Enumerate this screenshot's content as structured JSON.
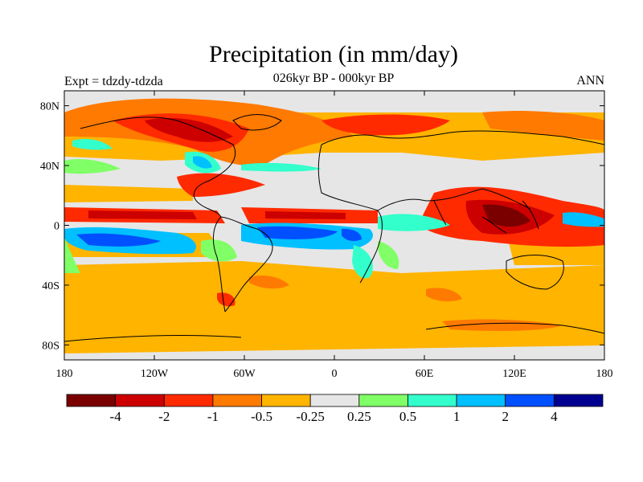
{
  "title": "Precipitation (in mm/day)",
  "subtitle": "026kyr BP - 000kyr BP",
  "left_label": "Expt = tdzdy-tdzda",
  "right_label": "ANN",
  "colors": {
    "land_coast": "#000000",
    "neutral": "#e6e6e6"
  },
  "map": {
    "x_ticks": [
      {
        "lon": -180,
        "label": "180"
      },
      {
        "lon": -120,
        "label": "120W"
      },
      {
        "lon": -60,
        "label": "60W"
      },
      {
        "lon": 0,
        "label": "0"
      },
      {
        "lon": 60,
        "label": "60E"
      },
      {
        "lon": 120,
        "label": "120E"
      },
      {
        "lon": 180,
        "label": "180"
      }
    ],
    "y_ticks": [
      {
        "lat": 80,
        "label": "80N"
      },
      {
        "lat": 40,
        "label": "40N"
      },
      {
        "lat": 0,
        "label": "0"
      },
      {
        "lat": -40,
        "label": "40S"
      },
      {
        "lat": -80,
        "label": "80S"
      }
    ],
    "lat_range": [
      -90,
      90
    ],
    "lon_range": [
      -180,
      180
    ]
  },
  "colorbar": {
    "colors": [
      "#7a0000",
      "#cc0000",
      "#ff2a00",
      "#ff7a00",
      "#ffb400",
      "#e6e6e6",
      "#80ff66",
      "#33ffcc",
      "#00c0ff",
      "#0050ff",
      "#000090"
    ],
    "labels": [
      "-4",
      "-2",
      "-1",
      "-0.5",
      "-0.25",
      "0.25",
      "0.5",
      "1",
      "2",
      "4"
    ]
  }
}
